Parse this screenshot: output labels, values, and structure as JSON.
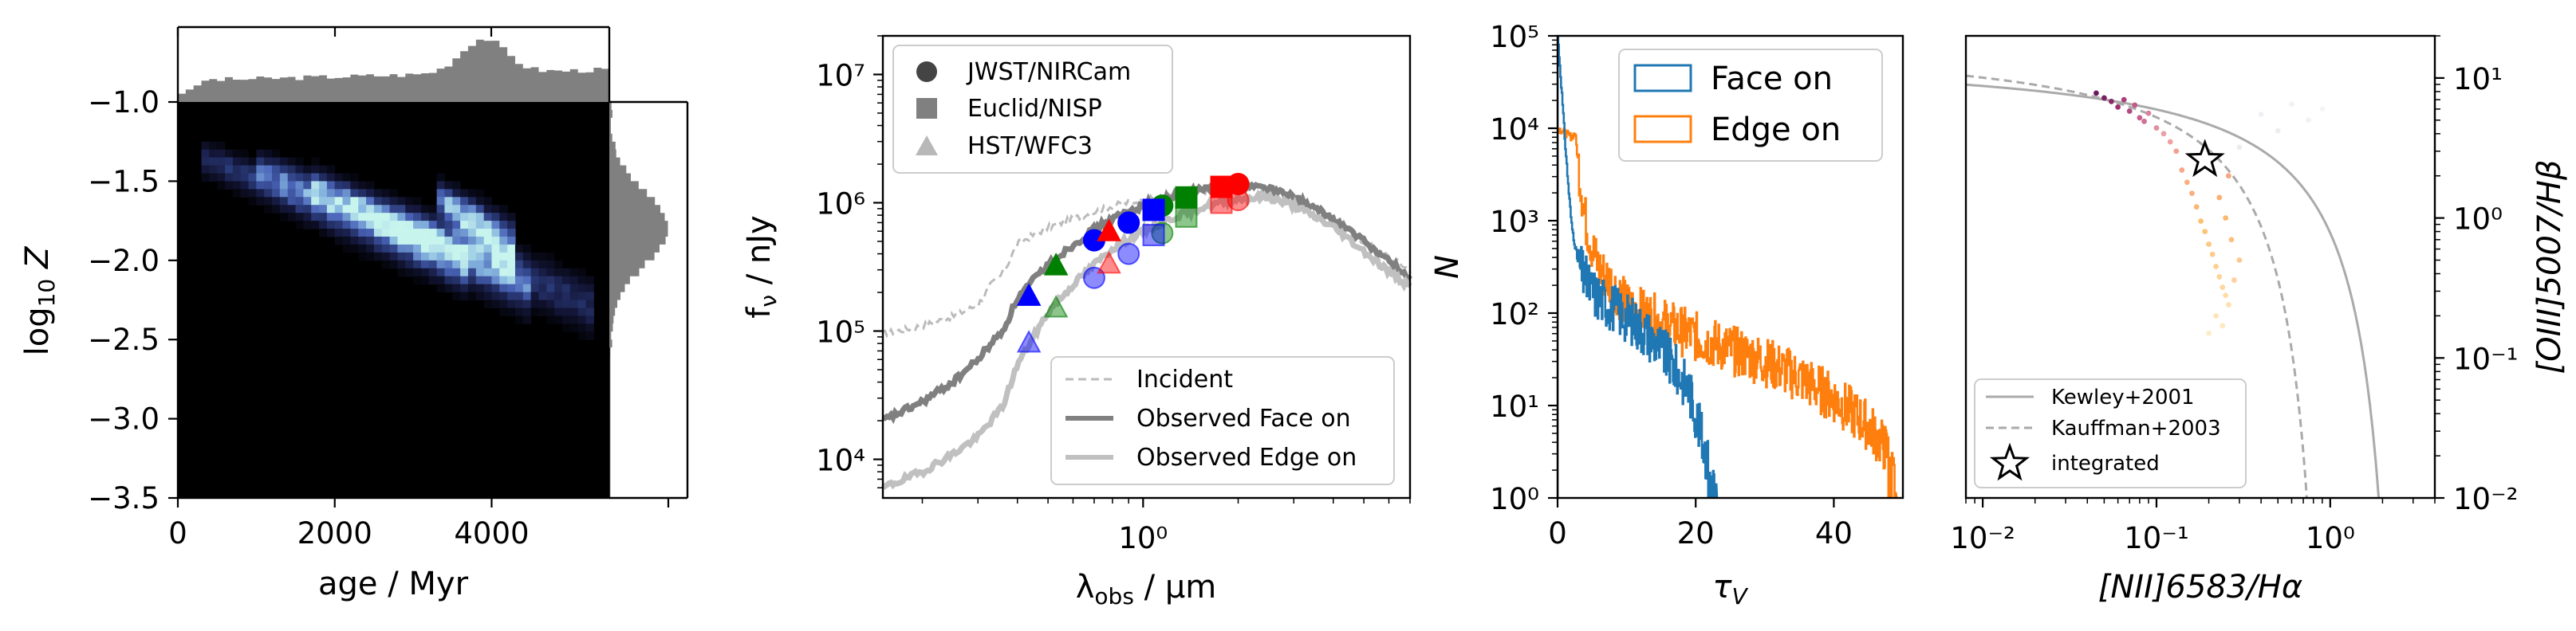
{
  "chart_data": [
    {
      "type": "heatmap",
      "panel": "2d-histogram-with-marginals",
      "xlabel": "age / Myr",
      "ylabel": "log10 Z",
      "xlim": [
        0,
        5500
      ],
      "ylim": [
        -3.5,
        -1.0
      ],
      "xticks": [
        "0",
        "2000",
        "4000"
      ],
      "yticks": [
        "−1.0",
        "−1.5",
        "−2.0",
        "−2.5",
        "−3.0",
        "−3.5"
      ],
      "colormap": [
        "#000000",
        "#14173a",
        "#2a3a78",
        "#4a64b8",
        "#88b8e0",
        "#c8f4ee"
      ],
      "density_ridges": [
        {
          "age_start": 300,
          "age_end": 3700,
          "logZ_start": -1.35,
          "logZ_end": -2.05,
          "peak": 0.45
        },
        {
          "age_start": 1000,
          "age_end": 4500,
          "logZ_start": -1.4,
          "logZ_end": -2.2,
          "peak": 0.5
        },
        {
          "age_start": 1700,
          "age_end": 5300,
          "logZ_start": -1.5,
          "logZ_end": -2.3,
          "peak": 0.4
        },
        {
          "age_start": 3300,
          "age_end": 4300,
          "logZ_start": -1.6,
          "logZ_end": -1.95,
          "peak": 1.0
        }
      ],
      "top_marginal_color": "#808080",
      "right_marginal_color": "#808080",
      "top_marginal_peak_age": 3900,
      "right_marginal_peak_logZ": -1.8
    },
    {
      "type": "line",
      "panel": "sed",
      "xlabel": "λobs / μm",
      "ylabel": "fν / nJy",
      "xscale": "log",
      "yscale": "log",
      "xlim": [
        0.15,
        7.0
      ],
      "ylim": [
        5000,
        20000000
      ],
      "xticks": [
        "10⁰"
      ],
      "yticks": [
        "10⁴",
        "10⁵",
        "10⁶",
        "10⁷"
      ],
      "series": [
        {
          "name": "Incident",
          "style": "dashed",
          "color": "#bbbbbb",
          "x": [
            0.15,
            0.2,
            0.25,
            0.3,
            0.33,
            0.36,
            0.4,
            0.45,
            0.5,
            0.6,
            0.7,
            0.8,
            1.0,
            1.3,
            1.6,
            2.0,
            2.5,
            3.0,
            4.0,
            5.0,
            6.0,
            7.0
          ],
          "y": [
            95000,
            110000,
            130000,
            160000,
            230000,
            280000,
            480000,
            560000,
            640000,
            750000,
            850000,
            950000,
            1050000,
            1150000,
            1250000,
            1350000,
            1200000,
            1000000,
            700000,
            500000,
            380000,
            300000
          ]
        },
        {
          "name": "Observed Face on",
          "style": "solid",
          "color": "#808080",
          "x": [
            0.15,
            0.2,
            0.25,
            0.3,
            0.33,
            0.36,
            0.4,
            0.45,
            0.5,
            0.6,
            0.7,
            0.8,
            1.0,
            1.3,
            1.6,
            2.0,
            2.5,
            3.0,
            4.0,
            5.0,
            6.0,
            7.0
          ],
          "y": [
            20000,
            28000,
            40000,
            60000,
            80000,
            100000,
            180000,
            250000,
            330000,
            470000,
            620000,
            750000,
            950000,
            1150000,
            1300000,
            1400000,
            1300000,
            1100000,
            750000,
            500000,
            350000,
            260000
          ]
        },
        {
          "name": "Observed Edge on",
          "style": "solid",
          "color": "#c0c0c0",
          "x": [
            0.15,
            0.2,
            0.25,
            0.3,
            0.33,
            0.36,
            0.4,
            0.45,
            0.5,
            0.6,
            0.7,
            0.8,
            1.0,
            1.3,
            1.6,
            2.0,
            2.5,
            3.0,
            4.0,
            5.0,
            6.0,
            7.0
          ],
          "y": [
            6000,
            8000,
            11000,
            15000,
            20000,
            26000,
            55000,
            90000,
            140000,
            230000,
            330000,
            440000,
            600000,
            800000,
            950000,
            1080000,
            1100000,
            950000,
            650000,
            420000,
            290000,
            220000
          ]
        }
      ],
      "photometry": [
        {
          "instrument": "JWST/NIRCam",
          "marker": "circle",
          "points": [
            {
              "x": 0.7,
              "face": 510000,
              "edge": 260000,
              "color": "#0000ff"
            },
            {
              "x": 0.9,
              "face": 700000,
              "edge": 400000,
              "color": "#0000ff"
            },
            {
              "x": 1.15,
              "face": 950000,
              "edge": 580000,
              "color": "#008000"
            },
            {
              "x": 2.0,
              "face": 1400000,
              "edge": 1050000,
              "color": "#ff0000"
            }
          ]
        },
        {
          "instrument": "Euclid/NISP",
          "marker": "square",
          "points": [
            {
              "x": 1.08,
              "face": 880000,
              "edge": 560000,
              "color": "#0000ff"
            },
            {
              "x": 1.37,
              "face": 1100000,
              "edge": 780000,
              "color": "#008000"
            },
            {
              "x": 1.77,
              "face": 1330000,
              "edge": 1000000,
              "color": "#ff0000"
            }
          ]
        },
        {
          "instrument": "HST/WFC3",
          "marker": "triangle",
          "points": [
            {
              "x": 0.435,
              "face": 185000,
              "edge": 80000,
              "color": "#0000ff"
            },
            {
              "x": 0.53,
              "face": 320000,
              "edge": 150000,
              "color": "#008000"
            },
            {
              "x": 0.78,
              "face": 590000,
              "edge": 330000,
              "color": "#ff0000"
            }
          ]
        }
      ],
      "legend_markers": {
        "placement": "upper-left",
        "entries": [
          "JWST/NIRCam",
          "Euclid/NISP",
          "HST/WFC3"
        ]
      },
      "legend_lines": {
        "placement": "lower-right",
        "entries": [
          "Incident",
          "Observed Face on",
          "Observed Edge on"
        ]
      }
    },
    {
      "type": "histogram",
      "panel": "optical-depth-distribution",
      "xlabel": "τV",
      "ylabel": "N",
      "yscale": "log",
      "xlim": [
        0,
        50
      ],
      "ylim": [
        1,
        100000
      ],
      "xticks": [
        "0",
        "20",
        "40"
      ],
      "yticks": [
        "10⁰",
        "10¹",
        "10²",
        "10³",
        "10⁴",
        "10⁵"
      ],
      "series": [
        {
          "name": "Face on",
          "color": "#1f77b4",
          "x": [
            0,
            0.5,
            1,
            1.5,
            2,
            3,
            4,
            5,
            7,
            10,
            13,
            15,
            17,
            19,
            20,
            21,
            22,
            23
          ],
          "y": [
            100000,
            30000,
            8000,
            2500,
            900,
            330,
            230,
            170,
            130,
            90,
            60,
            40,
            25,
            15,
            8,
            4,
            2,
            1
          ]
        },
        {
          "name": "Edge on",
          "color": "#ff7f0e",
          "x": [
            0,
            1,
            2,
            2.5,
            3,
            3.5,
            4,
            5,
            6,
            8,
            10,
            15,
            20,
            25,
            30,
            35,
            40,
            45,
            48,
            49
          ],
          "y": [
            10000,
            9000,
            8000,
            9000,
            4000,
            2000,
            1000,
            500,
            300,
            200,
            120,
            80,
            55,
            40,
            30,
            20,
            12,
            6,
            3,
            1
          ]
        }
      ],
      "legend": {
        "placement": "top-right",
        "entries": [
          "Face on",
          "Edge on"
        ]
      }
    },
    {
      "type": "scatter",
      "panel": "bpt-diagram",
      "xlabel": "[NII]6583/Hα",
      "ylabel": "[OIII]5007/Hβ",
      "xscale": "log",
      "yscale": "log",
      "xlim": [
        0.008,
        4.0
      ],
      "ylim": [
        0.01,
        20
      ],
      "xticks": [
        "10⁻²",
        "10⁻¹",
        "10⁰"
      ],
      "yticks": [
        "10⁻²",
        "10⁻¹",
        "10⁰",
        "10¹"
      ],
      "y_axis_side": "right",
      "series": [
        {
          "name": "Kewley+2001",
          "style": "solid",
          "color": "#aaaaaa"
        },
        {
          "name": "Kauffman+2003",
          "style": "dashed",
          "color": "#aaaaaa"
        },
        {
          "name": "integrated",
          "marker": "star",
          "x": [
            0.19
          ],
          "y": [
            2.6
          ]
        }
      ],
      "points": [
        {
          "x": 0.045,
          "y": 7.8,
          "c": "#6a1a5a"
        },
        {
          "x": 0.05,
          "y": 7.2,
          "c": "#7a2060"
        },
        {
          "x": 0.055,
          "y": 6.8,
          "c": "#8a2a6a"
        },
        {
          "x": 0.06,
          "y": 6.2,
          "c": "#9a3070"
        },
        {
          "x": 0.065,
          "y": 7.0,
          "c": "#a8407a"
        },
        {
          "x": 0.07,
          "y": 5.8,
          "c": "#b04a80"
        },
        {
          "x": 0.075,
          "y": 6.4,
          "c": "#c05a88"
        },
        {
          "x": 0.08,
          "y": 5.2,
          "c": "#c86090"
        },
        {
          "x": 0.085,
          "y": 4.9,
          "c": "#d07098"
        },
        {
          "x": 0.09,
          "y": 5.6,
          "c": "#d880a0"
        },
        {
          "x": 0.1,
          "y": 4.4,
          "c": "#e090a0"
        },
        {
          "x": 0.11,
          "y": 4.0,
          "c": "#e8a0a8"
        },
        {
          "x": 0.12,
          "y": 3.5,
          "c": "#f0a0a0"
        },
        {
          "x": 0.13,
          "y": 3.0,
          "c": "#f4a090"
        },
        {
          "x": 0.14,
          "y": 2.2,
          "c": "#f6a888"
        },
        {
          "x": 0.15,
          "y": 1.8,
          "c": "#f8b080"
        },
        {
          "x": 0.16,
          "y": 1.5,
          "c": "#f8b080"
        },
        {
          "x": 0.17,
          "y": 1.2,
          "c": "#fab878"
        },
        {
          "x": 0.18,
          "y": 0.95,
          "c": "#fcc070"
        },
        {
          "x": 0.19,
          "y": 0.8,
          "c": "#fcc478"
        },
        {
          "x": 0.2,
          "y": 0.65,
          "c": "#fdc880"
        },
        {
          "x": 0.21,
          "y": 0.55,
          "c": "#fdcc88"
        },
        {
          "x": 0.22,
          "y": 0.45,
          "c": "#fdd090"
        },
        {
          "x": 0.23,
          "y": 0.38,
          "c": "#fdd498"
        },
        {
          "x": 0.24,
          "y": 0.32,
          "c": "#fdd8a0"
        },
        {
          "x": 0.25,
          "y": 0.28,
          "c": "#fddca8"
        },
        {
          "x": 0.26,
          "y": 0.24,
          "c": "#fde0b0"
        },
        {
          "x": 0.22,
          "y": 0.2,
          "c": "#fde4b8"
        },
        {
          "x": 0.24,
          "y": 0.17,
          "c": "#fde8c0"
        },
        {
          "x": 0.2,
          "y": 0.15,
          "c": "#fdecc8"
        },
        {
          "x": 0.28,
          "y": 0.36,
          "c": "#fcd0a0"
        },
        {
          "x": 0.3,
          "y": 0.5,
          "c": "#fcc890"
        },
        {
          "x": 0.27,
          "y": 0.7,
          "c": "#fbc080"
        },
        {
          "x": 0.25,
          "y": 1.0,
          "c": "#fab870"
        },
        {
          "x": 0.23,
          "y": 1.4,
          "c": "#f9b070"
        },
        {
          "x": 0.26,
          "y": 2.0,
          "c": "#f6a880"
        },
        {
          "x": 0.3,
          "y": 3.2,
          "c": "#eeeaf0"
        },
        {
          "x": 0.4,
          "y": 5.5,
          "c": "#f2eef4"
        },
        {
          "x": 0.6,
          "y": 6.5,
          "c": "#f4f0f6"
        },
        {
          "x": 0.9,
          "y": 6.0,
          "c": "#f6f2f8"
        },
        {
          "x": 0.5,
          "y": 4.2,
          "c": "#f0ecf2"
        },
        {
          "x": 0.75,
          "y": 5.0,
          "c": "#f4f0f6"
        }
      ],
      "legend": {
        "placement": "lower-left",
        "entries": [
          "Kewley+2001",
          "Kauffman+2003",
          "integrated"
        ]
      }
    }
  ]
}
